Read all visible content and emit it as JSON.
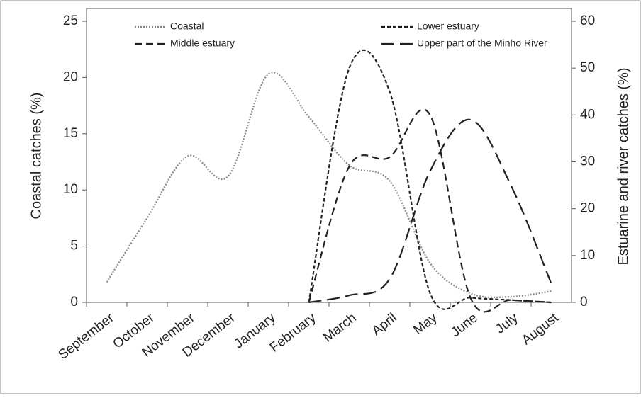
{
  "chart_data": {
    "type": "line",
    "y_label": "Coastal catches (%)",
    "y2_label": "Estuarine and river catches (%)",
    "categories": [
      "September",
      "October",
      "November",
      "December",
      "January",
      "February",
      "March",
      "April",
      "May",
      "June",
      "July",
      "August"
    ],
    "ylim": [
      0,
      25
    ],
    "yticks": [
      0,
      5,
      10,
      15,
      20,
      25
    ],
    "y2lim": [
      0,
      60
    ],
    "y2ticks": [
      0,
      10,
      20,
      30,
      40,
      50,
      60
    ],
    "series": [
      {
        "name": "Coastal",
        "color": "#8a8a8a",
        "dash": "2,2",
        "axis": "y",
        "values": [
          1.8,
          7.5,
          13,
          11.2,
          20.3,
          16.5,
          12.2,
          10.8,
          3.5,
          0.8,
          0.5,
          1.0
        ]
      },
      {
        "name": "Lower estuary",
        "color": "#222222",
        "dash": "5,3",
        "axis": "y2",
        "values": [
          null,
          null,
          null,
          null,
          null,
          0,
          50,
          45,
          2,
          1,
          0.5,
          0
        ]
      },
      {
        "name": "Middle estuary",
        "color": "#222222",
        "dash": "10,6",
        "axis": "y2",
        "values": [
          null,
          null,
          null,
          null,
          null,
          0,
          29,
          31,
          40,
          1,
          0.5,
          0
        ]
      },
      {
        "name": "Upper part of the Minho River",
        "color": "#222222",
        "dash": "18,8",
        "axis": "y2",
        "values": [
          null,
          null,
          null,
          null,
          null,
          0,
          1.5,
          5,
          28,
          39,
          25,
          4
        ]
      }
    ]
  }
}
